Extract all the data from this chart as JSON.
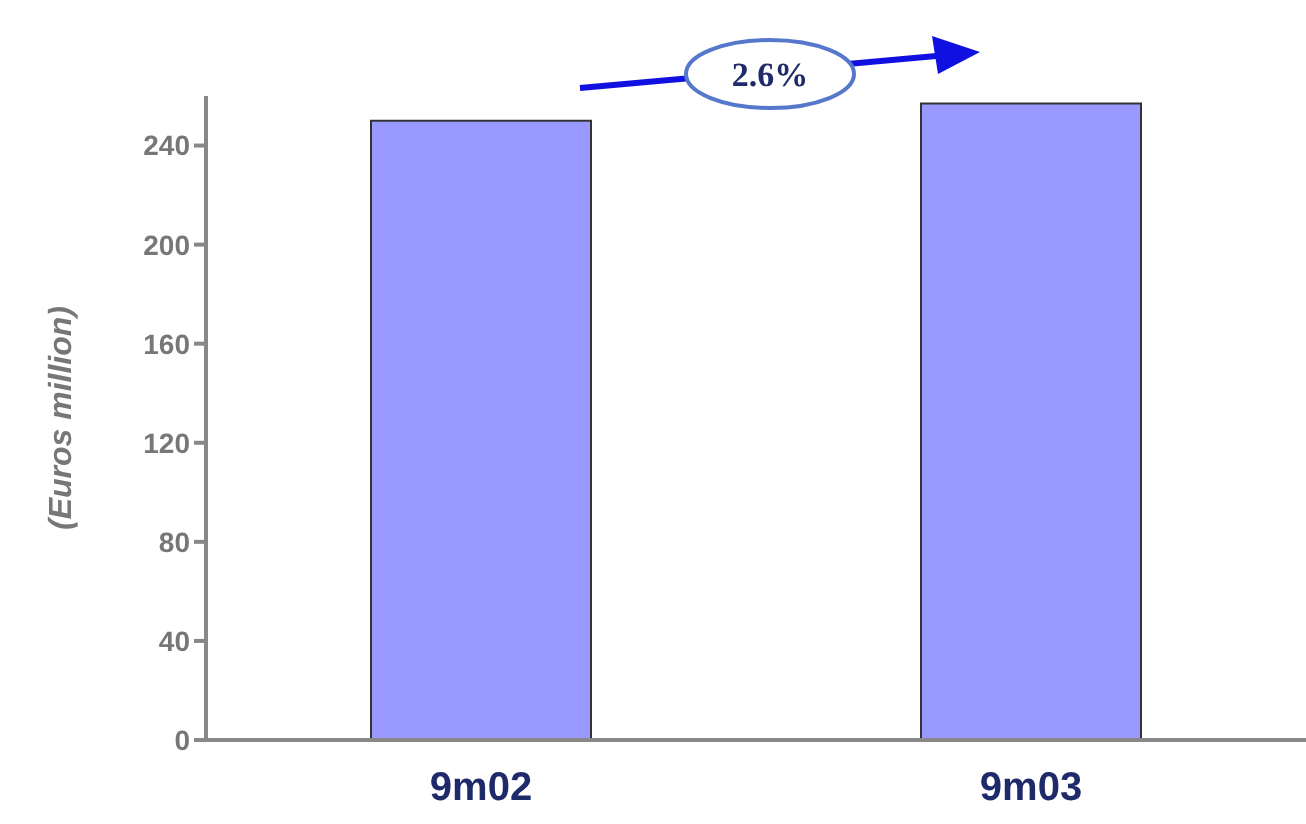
{
  "chart_data": {
    "type": "bar",
    "ylabel": "(Euros million)",
    "categories": [
      "9m02",
      "9m03"
    ],
    "values": [
      250,
      257
    ],
    "color": "#9999ff",
    "ylim": [
      0,
      260
    ],
    "yticks": [
      0,
      40,
      80,
      120,
      160,
      200,
      240
    ],
    "grid": false,
    "legend": false,
    "annotations": [
      "2.6%"
    ]
  }
}
